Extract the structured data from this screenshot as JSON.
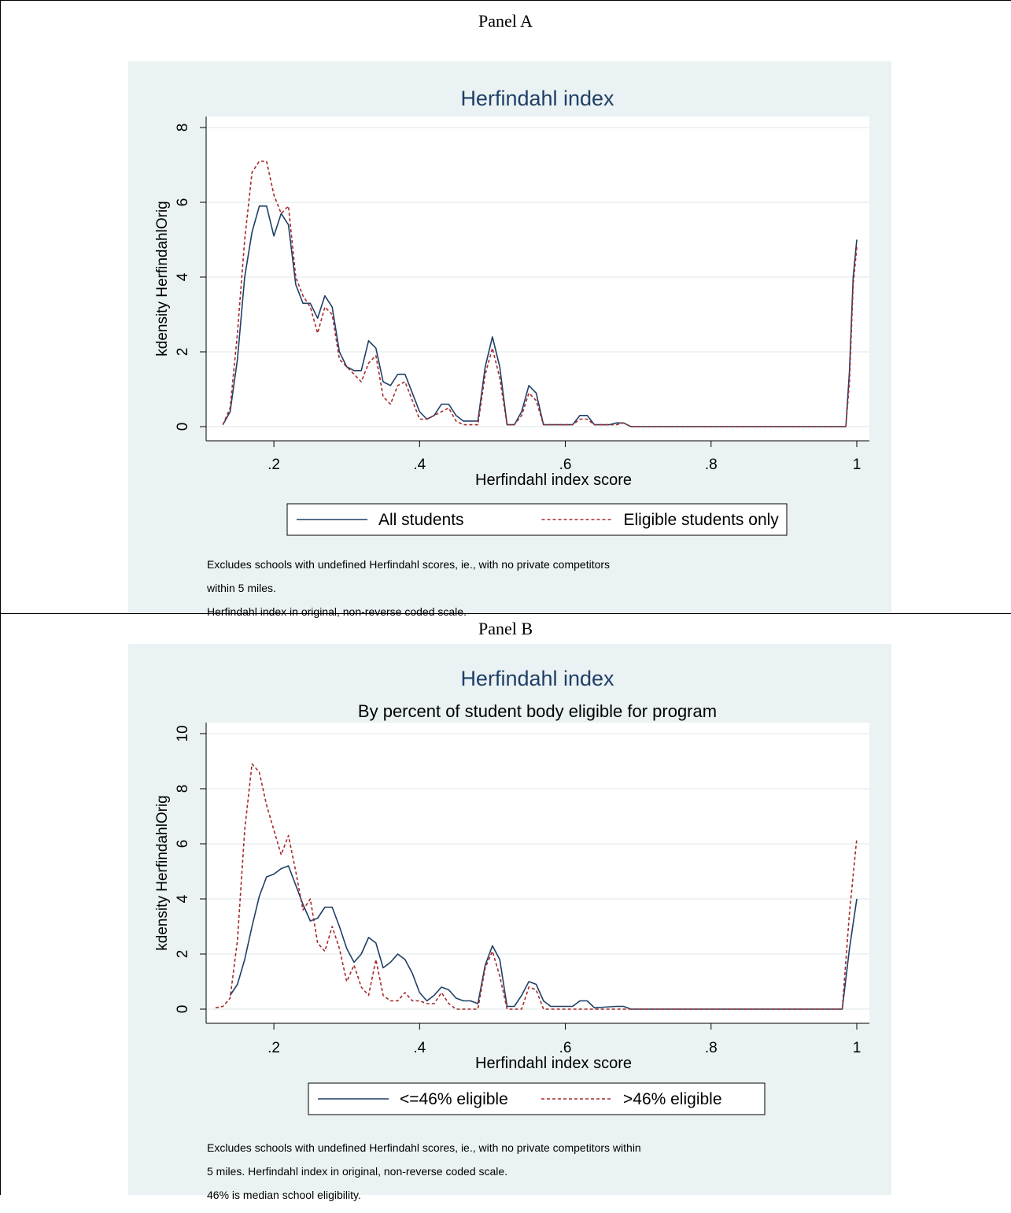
{
  "panels": [
    {
      "panel_label": "Panel A",
      "notes": [
        "Excludes schools with undefined Herfindahl scores, ie., with no private competitors",
        "within 5 miles.",
        "Herfindahl index in original, non-reverse coded scale."
      ]
    },
    {
      "panel_label": "Panel B",
      "notes": [
        "Excludes schools with undefined Herfindahl scores, ie., with no private competitors within",
        "5 miles. Herfindahl index in original, non-reverse coded scale.",
        "46% is median school eligibility."
      ]
    }
  ],
  "colors": {
    "series_solid": "#1f3f66",
    "series_dashed": "#a52a2a",
    "plot_background": "#eaf2f3",
    "gridline": "#ffffff",
    "title": "#1f3f66"
  },
  "chart_data": [
    {
      "type": "line",
      "title": "Herfindahl index",
      "subtitle": "",
      "xlabel": "Herfindahl index score",
      "ylabel": "kdensity HerfindahlOrig",
      "xlim": [
        0.12,
        1.0
      ],
      "ylim": [
        0,
        8
      ],
      "x_ticks": [
        0.2,
        0.4,
        0.6,
        0.8,
        1
      ],
      "x_tick_labels": [
        ".2",
        ".4",
        ".6",
        ".8",
        "1"
      ],
      "y_ticks": [
        0,
        2,
        4,
        6,
        8
      ],
      "y_tick_labels": [
        "0",
        "2",
        "4",
        "6",
        "8"
      ],
      "grid": true,
      "legend_position": "bottom",
      "series": [
        {
          "name": "All students",
          "style": "solid",
          "points": [
            [
              0.13,
              0.05
            ],
            [
              0.14,
              0.4
            ],
            [
              0.15,
              1.8
            ],
            [
              0.16,
              4.0
            ],
            [
              0.17,
              5.2
            ],
            [
              0.18,
              5.9
            ],
            [
              0.19,
              5.9
            ],
            [
              0.2,
              5.1
            ],
            [
              0.21,
              5.7
            ],
            [
              0.22,
              5.4
            ],
            [
              0.23,
              3.8
            ],
            [
              0.24,
              3.3
            ],
            [
              0.25,
              3.3
            ],
            [
              0.26,
              2.9
            ],
            [
              0.27,
              3.5
            ],
            [
              0.28,
              3.2
            ],
            [
              0.29,
              2.0
            ],
            [
              0.3,
              1.6
            ],
            [
              0.31,
              1.5
            ],
            [
              0.32,
              1.5
            ],
            [
              0.33,
              2.3
            ],
            [
              0.34,
              2.1
            ],
            [
              0.35,
              1.2
            ],
            [
              0.36,
              1.1
            ],
            [
              0.37,
              1.4
            ],
            [
              0.38,
              1.4
            ],
            [
              0.39,
              0.9
            ],
            [
              0.4,
              0.4
            ],
            [
              0.41,
              0.2
            ],
            [
              0.42,
              0.3
            ],
            [
              0.43,
              0.6
            ],
            [
              0.44,
              0.6
            ],
            [
              0.45,
              0.3
            ],
            [
              0.46,
              0.15
            ],
            [
              0.47,
              0.15
            ],
            [
              0.48,
              0.15
            ],
            [
              0.49,
              1.6
            ],
            [
              0.5,
              2.4
            ],
            [
              0.51,
              1.6
            ],
            [
              0.52,
              0.05
            ],
            [
              0.53,
              0.05
            ],
            [
              0.54,
              0.4
            ],
            [
              0.55,
              1.1
            ],
            [
              0.56,
              0.9
            ],
            [
              0.57,
              0.05
            ],
            [
              0.6,
              0.05
            ],
            [
              0.61,
              0.05
            ],
            [
              0.62,
              0.3
            ],
            [
              0.63,
              0.3
            ],
            [
              0.64,
              0.05
            ],
            [
              0.66,
              0.05
            ],
            [
              0.67,
              0.1
            ],
            [
              0.68,
              0.1
            ],
            [
              0.69,
              0.0
            ],
            [
              0.985,
              0.0
            ],
            [
              0.99,
              1.5
            ],
            [
              0.995,
              4.0
            ],
            [
              1.0,
              5.0
            ]
          ]
        },
        {
          "name": "Eligible students only",
          "style": "dashed",
          "points": [
            [
              0.13,
              0.05
            ],
            [
              0.14,
              0.5
            ],
            [
              0.15,
              2.5
            ],
            [
              0.16,
              5.0
            ],
            [
              0.17,
              6.8
            ],
            [
              0.18,
              7.1
            ],
            [
              0.19,
              7.1
            ],
            [
              0.2,
              6.2
            ],
            [
              0.21,
              5.7
            ],
            [
              0.22,
              5.9
            ],
            [
              0.23,
              4.0
            ],
            [
              0.24,
              3.5
            ],
            [
              0.25,
              3.2
            ],
            [
              0.26,
              2.5
            ],
            [
              0.27,
              3.2
            ],
            [
              0.28,
              3.0
            ],
            [
              0.29,
              1.8
            ],
            [
              0.3,
              1.6
            ],
            [
              0.31,
              1.4
            ],
            [
              0.32,
              1.2
            ],
            [
              0.33,
              1.7
            ],
            [
              0.34,
              1.9
            ],
            [
              0.35,
              0.8
            ],
            [
              0.36,
              0.6
            ],
            [
              0.37,
              1.1
            ],
            [
              0.38,
              1.2
            ],
            [
              0.39,
              0.7
            ],
            [
              0.4,
              0.2
            ],
            [
              0.41,
              0.2
            ],
            [
              0.42,
              0.3
            ],
            [
              0.43,
              0.4
            ],
            [
              0.44,
              0.5
            ],
            [
              0.45,
              0.15
            ],
            [
              0.46,
              0.05
            ],
            [
              0.47,
              0.05
            ],
            [
              0.48,
              0.05
            ],
            [
              0.49,
              1.4
            ],
            [
              0.5,
              2.1
            ],
            [
              0.51,
              1.3
            ],
            [
              0.52,
              0.05
            ],
            [
              0.53,
              0.05
            ],
            [
              0.54,
              0.3
            ],
            [
              0.55,
              0.9
            ],
            [
              0.56,
              0.7
            ],
            [
              0.57,
              0.05
            ],
            [
              0.61,
              0.05
            ],
            [
              0.62,
              0.2
            ],
            [
              0.63,
              0.2
            ],
            [
              0.64,
              0.05
            ],
            [
              0.67,
              0.05
            ],
            [
              0.68,
              0.1
            ],
            [
              0.69,
              0.0
            ],
            [
              0.985,
              0.0
            ],
            [
              0.99,
              1.2
            ],
            [
              0.995,
              3.8
            ],
            [
              1.0,
              4.8
            ]
          ]
        }
      ]
    },
    {
      "type": "line",
      "title": "Herfindahl index",
      "subtitle": "By percent of student body eligible for program",
      "xlabel": "Herfindahl index score",
      "ylabel": "kdensity HerfindahlOrig",
      "xlim": [
        0.12,
        1.0
      ],
      "ylim": [
        0,
        10
      ],
      "x_ticks": [
        0.2,
        0.4,
        0.6,
        0.8,
        1
      ],
      "x_tick_labels": [
        ".2",
        ".4",
        ".6",
        ".8",
        "1"
      ],
      "y_ticks": [
        0,
        2,
        4,
        6,
        8,
        10
      ],
      "y_tick_labels": [
        "0",
        "2",
        "4",
        "6",
        "8",
        "10"
      ],
      "grid": true,
      "legend_position": "bottom",
      "series": [
        {
          "name": "<=46% eligible",
          "style": "solid",
          "points": [
            [
              0.14,
              0.5
            ],
            [
              0.15,
              0.9
            ],
            [
              0.16,
              1.8
            ],
            [
              0.17,
              3.0
            ],
            [
              0.18,
              4.1
            ],
            [
              0.19,
              4.8
            ],
            [
              0.2,
              4.9
            ],
            [
              0.21,
              5.1
            ],
            [
              0.22,
              5.2
            ],
            [
              0.23,
              4.5
            ],
            [
              0.24,
              3.8
            ],
            [
              0.25,
              3.2
            ],
            [
              0.26,
              3.3
            ],
            [
              0.27,
              3.7
            ],
            [
              0.28,
              3.7
            ],
            [
              0.29,
              3.0
            ],
            [
              0.3,
              2.2
            ],
            [
              0.31,
              1.7
            ],
            [
              0.32,
              2.0
            ],
            [
              0.33,
              2.6
            ],
            [
              0.34,
              2.4
            ],
            [
              0.35,
              1.5
            ],
            [
              0.36,
              1.7
            ],
            [
              0.37,
              2.0
            ],
            [
              0.38,
              1.8
            ],
            [
              0.39,
              1.3
            ],
            [
              0.4,
              0.6
            ],
            [
              0.41,
              0.3
            ],
            [
              0.42,
              0.5
            ],
            [
              0.43,
              0.8
            ],
            [
              0.44,
              0.7
            ],
            [
              0.45,
              0.4
            ],
            [
              0.46,
              0.3
            ],
            [
              0.47,
              0.3
            ],
            [
              0.48,
              0.2
            ],
            [
              0.49,
              1.6
            ],
            [
              0.5,
              2.3
            ],
            [
              0.51,
              1.8
            ],
            [
              0.52,
              0.1
            ],
            [
              0.53,
              0.1
            ],
            [
              0.54,
              0.5
            ],
            [
              0.55,
              1.0
            ],
            [
              0.56,
              0.9
            ],
            [
              0.57,
              0.3
            ],
            [
              0.58,
              0.1
            ],
            [
              0.61,
              0.1
            ],
            [
              0.62,
              0.3
            ],
            [
              0.63,
              0.3
            ],
            [
              0.64,
              0.05
            ],
            [
              0.67,
              0.1
            ],
            [
              0.68,
              0.1
            ],
            [
              0.69,
              0.0
            ],
            [
              0.98,
              0.0
            ],
            [
              0.99,
              2.2
            ],
            [
              1.0,
              4.0
            ]
          ]
        },
        {
          "name": ">46% eligible",
          "style": "dashed",
          "points": [
            [
              0.12,
              0.05
            ],
            [
              0.13,
              0.1
            ],
            [
              0.14,
              0.4
            ],
            [
              0.15,
              2.5
            ],
            [
              0.16,
              6.5
            ],
            [
              0.17,
              8.9
            ],
            [
              0.18,
              8.6
            ],
            [
              0.19,
              7.4
            ],
            [
              0.2,
              6.5
            ],
            [
              0.21,
              5.6
            ],
            [
              0.22,
              6.3
            ],
            [
              0.23,
              5.0
            ],
            [
              0.24,
              3.6
            ],
            [
              0.25,
              4.0
            ],
            [
              0.26,
              2.4
            ],
            [
              0.27,
              2.1
            ],
            [
              0.28,
              3.0
            ],
            [
              0.29,
              2.2
            ],
            [
              0.3,
              1.0
            ],
            [
              0.31,
              1.6
            ],
            [
              0.32,
              0.8
            ],
            [
              0.33,
              0.5
            ],
            [
              0.34,
              1.8
            ],
            [
              0.35,
              0.5
            ],
            [
              0.36,
              0.3
            ],
            [
              0.37,
              0.3
            ],
            [
              0.38,
              0.6
            ],
            [
              0.39,
              0.3
            ],
            [
              0.4,
              0.3
            ],
            [
              0.41,
              0.2
            ],
            [
              0.42,
              0.2
            ],
            [
              0.43,
              0.6
            ],
            [
              0.44,
              0.2
            ],
            [
              0.45,
              0.0
            ],
            [
              0.48,
              0.0
            ],
            [
              0.49,
              1.5
            ],
            [
              0.5,
              2.1
            ],
            [
              0.51,
              1.2
            ],
            [
              0.52,
              0.0
            ],
            [
              0.54,
              0.0
            ],
            [
              0.55,
              0.8
            ],
            [
              0.56,
              0.7
            ],
            [
              0.57,
              0.0
            ],
            [
              0.98,
              0.0
            ],
            [
              0.99,
              3.5
            ],
            [
              1.0,
              6.2
            ]
          ]
        }
      ]
    }
  ]
}
